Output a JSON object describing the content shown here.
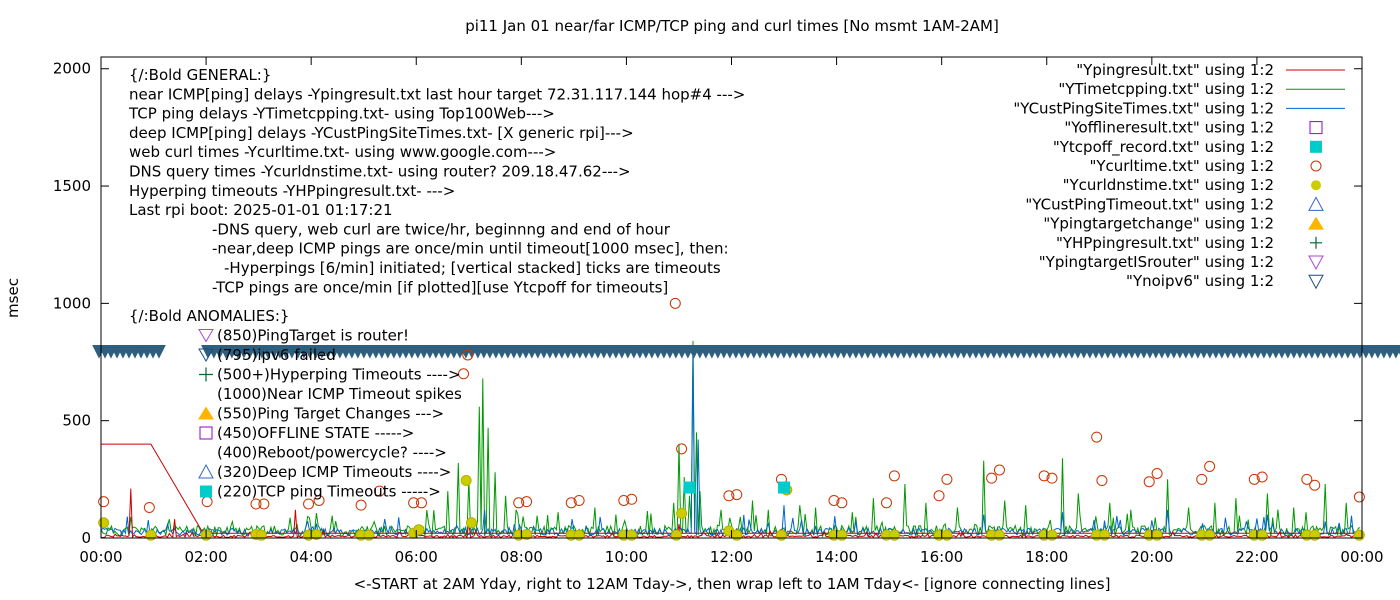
{
  "chart_data": {
    "type": "line",
    "title": "pi11 Jan 01  near/far ICMP/TCP ping and curl times [No msmt 1AM-2AM]",
    "xlabel": "<-START at 2AM Yday, right to 12AM Tday->, then wrap left to 1AM Tday<- [ignore connecting lines]",
    "ylabel": "msec",
    "xlim": [
      0,
      24
    ],
    "ylim": [
      0,
      2050
    ],
    "yticks": [
      0,
      500,
      1000,
      1500,
      2000
    ],
    "xticks": [
      "00:00",
      "02:00",
      "04:00",
      "06:00",
      "08:00",
      "10:00",
      "12:00",
      "14:00",
      "16:00",
      "18:00",
      "20:00",
      "22:00",
      "00:00"
    ],
    "grid": false,
    "legend_position": "top-right",
    "legend": [
      {
        "label": "\"Ypingresult.txt\" using 1:2",
        "marker": "line",
        "color": "#cc0000"
      },
      {
        "label": "\"YTimetcpping.txt\" using 1:2",
        "marker": "line",
        "color": "#009900"
      },
      {
        "label": "\"YCustPingSiteTimes.txt\" using 1:2",
        "marker": "line",
        "color": "#0066cc"
      },
      {
        "label": "\"Yofflineresult.txt\" using 1:2",
        "marker": "square-open",
        "color": "#9900cc"
      },
      {
        "label": "\"Ytcpoff_record.txt\" using 1:2",
        "marker": "square-filled",
        "color": "#00cccc"
      },
      {
        "label": "\"Ycurltime.txt\" using 1:2",
        "marker": "circle-open",
        "color": "#cc3300"
      },
      {
        "label": "\"Ycurldnstime.txt\" using 1:2",
        "marker": "circle-filled",
        "color": "#cccc00"
      },
      {
        "label": "\"YCustPingTimeout.txt\" using 1:2",
        "marker": "triangle-up-open",
        "color": "#3366cc"
      },
      {
        "label": "\"Ypingtargetchange\" using 1:2",
        "marker": "triangle-up-filled",
        "color": "#ffb400"
      },
      {
        "label": "\"YHPpingresult.txt\" using 1:2",
        "marker": "plus",
        "color": "#006633"
      },
      {
        "label": "\"YpingtargetISrouter\" using 1:2",
        "marker": "triangle-down-open",
        "color": "#aa44dd"
      },
      {
        "label": "\"Ynoipv6\" using 1:2",
        "marker": "triangle-down-open",
        "color": "#1a4d80"
      }
    ],
    "annotations_general": [
      "{/:Bold GENERAL:}",
      "near ICMP[ping] delays -Ypingresult.txt last hour target 72.31.117.144 hop#4 --->",
      "TCP ping delays -YTimetcpping.txt- using Top100Web--->",
      "deep ICMP[ping] delays -YCustPingSiteTimes.txt- [X generic rpi]--->",
      "web curl times -Ycurltime.txt- using www.google.com--->",
      "DNS query times -Ycurldnstime.txt- using router? 209.18.47.62--->",
      "Hyperping timeouts -YHPpingresult.txt- --->",
      "Last rpi boot: 2025-01-01 01:17:21",
      "-DNS query, web curl are twice/hr, beginnng and end of hour",
      "-near,deep ICMP pings are once/min until timeout[1000 msec], then:",
      "-Hyperpings [6/min] initiated; [vertical stacked] ticks are timeouts",
      "-TCP pings are once/min [if plotted][use Ytcpoff for timeouts]"
    ],
    "annotations_anomalies": [
      "{/:Bold ANOMALIES:}",
      "(850)PingTarget is router!",
      "(795)ipv6 failed",
      "(500+)Hyperping Timeouts ---->",
      "(1000)Near ICMP Timeout spikes",
      "(550)Ping Target Changes --->",
      "(450)OFFLINE STATE ----->",
      "(400)Reboot/powercycle? ---->",
      "(320)Deep ICMP Timeouts ---->",
      "(220)TCP ping Timeouts ----->"
    ],
    "ipv6_failed_band": {
      "y": 795,
      "from_x": 0,
      "to_x": 24,
      "gap_from_x": 1.0,
      "gap_to_x": 1.92
    },
    "series_ping": {
      "name": "Ypingresult.txt",
      "points": [
        [
          0,
          400
        ],
        [
          0.05,
          400
        ],
        [
          0.95,
          400
        ],
        [
          1.92,
          30
        ],
        [
          2.0,
          20
        ],
        [
          24,
          20
        ]
      ]
    },
    "curl_points": [
      [
        0.05,
        155
      ],
      [
        0.92,
        130
      ],
      [
        2.02,
        155
      ],
      [
        2.95,
        145
      ],
      [
        3.1,
        145
      ],
      [
        3.95,
        145
      ],
      [
        4.15,
        160
      ],
      [
        4.95,
        140
      ],
      [
        5.3,
        200
      ],
      [
        5.95,
        150
      ],
      [
        6.1,
        150
      ],
      [
        6.9,
        700
      ],
      [
        6.98,
        780
      ],
      [
        7.95,
        150
      ],
      [
        8.1,
        155
      ],
      [
        8.95,
        150
      ],
      [
        9.1,
        160
      ],
      [
        9.95,
        160
      ],
      [
        10.1,
        165
      ],
      [
        10.93,
        1000
      ],
      [
        11.05,
        380
      ],
      [
        11.95,
        180
      ],
      [
        12.1,
        185
      ],
      [
        12.95,
        250
      ],
      [
        13.05,
        205
      ],
      [
        13.95,
        160
      ],
      [
        14.1,
        150
      ],
      [
        14.95,
        150
      ],
      [
        15.1,
        265
      ],
      [
        15.95,
        180
      ],
      [
        16.1,
        250
      ],
      [
        16.95,
        255
      ],
      [
        17.1,
        290
      ],
      [
        17.95,
        265
      ],
      [
        18.1,
        255
      ],
      [
        18.95,
        430
      ],
      [
        19.05,
        245
      ],
      [
        19.95,
        240
      ],
      [
        20.1,
        275
      ],
      [
        20.95,
        250
      ],
      [
        21.1,
        305
      ],
      [
        21.95,
        250
      ],
      [
        22.1,
        260
      ],
      [
        22.95,
        250
      ],
      [
        23.1,
        225
      ],
      [
        23.95,
        175
      ]
    ],
    "dns_points": [
      [
        0.05,
        65
      ],
      [
        0.95,
        12
      ],
      [
        2.0,
        12
      ],
      [
        2.95,
        15
      ],
      [
        3.05,
        12
      ],
      [
        3.95,
        12
      ],
      [
        4.1,
        15
      ],
      [
        4.95,
        12
      ],
      [
        5.1,
        12
      ],
      [
        5.95,
        20
      ],
      [
        6.05,
        35
      ],
      [
        6.95,
        245
      ],
      [
        7.05,
        65
      ],
      [
        7.95,
        12
      ],
      [
        8.1,
        15
      ],
      [
        8.95,
        12
      ],
      [
        9.1,
        12
      ],
      [
        9.95,
        12
      ],
      [
        10.1,
        12
      ],
      [
        10.95,
        12
      ],
      [
        11.05,
        105
      ],
      [
        11.95,
        30
      ],
      [
        12.1,
        12
      ],
      [
        12.95,
        12
      ],
      [
        13.05,
        205
      ],
      [
        13.95,
        12
      ],
      [
        14.1,
        12
      ],
      [
        14.95,
        12
      ],
      [
        15.1,
        12
      ],
      [
        15.95,
        12
      ],
      [
        16.1,
        12
      ],
      [
        16.95,
        12
      ],
      [
        17.1,
        12
      ],
      [
        17.95,
        12
      ],
      [
        18.1,
        12
      ],
      [
        18.95,
        12
      ],
      [
        19.1,
        12
      ],
      [
        19.95,
        12
      ],
      [
        20.1,
        12
      ],
      [
        20.95,
        12
      ],
      [
        21.1,
        12
      ],
      [
        21.95,
        12
      ],
      [
        22.1,
        12
      ],
      [
        22.95,
        12
      ],
      [
        23.1,
        12
      ],
      [
        23.95,
        12
      ]
    ],
    "tcp_timeout_points": [
      [
        11.2,
        215
      ],
      [
        13.0,
        215
      ]
    ],
    "tcp_spikes": [
      [
        0.55,
        90
      ],
      [
        1.3,
        80
      ],
      [
        2.5,
        70
      ],
      [
        3.6,
        85
      ],
      [
        4.4,
        95
      ],
      [
        5.2,
        70
      ],
      [
        6.2,
        100
      ],
      [
        6.6,
        200
      ],
      [
        6.8,
        320
      ],
      [
        7.0,
        250
      ],
      [
        7.2,
        560
      ],
      [
        7.28,
        680
      ],
      [
        7.35,
        470
      ],
      [
        7.5,
        280
      ],
      [
        7.7,
        180
      ],
      [
        7.9,
        120
      ],
      [
        8.3,
        95
      ],
      [
        8.7,
        110
      ],
      [
        9.4,
        130
      ],
      [
        9.8,
        100
      ],
      [
        10.4,
        115
      ],
      [
        10.9,
        150
      ],
      [
        11.0,
        400
      ],
      [
        11.1,
        260
      ],
      [
        11.2,
        180
      ],
      [
        11.28,
        840
      ],
      [
        11.33,
        450
      ],
      [
        11.4,
        200
      ],
      [
        11.8,
        120
      ],
      [
        12.4,
        160
      ],
      [
        12.7,
        120
      ],
      [
        13.3,
        140
      ],
      [
        13.6,
        130
      ],
      [
        14.3,
        110
      ],
      [
        14.7,
        170
      ],
      [
        15.3,
        230
      ],
      [
        15.7,
        150
      ],
      [
        16.3,
        130
      ],
      [
        16.8,
        330
      ],
      [
        17.2,
        160
      ],
      [
        17.6,
        140
      ],
      [
        18.3,
        340
      ],
      [
        18.6,
        190
      ],
      [
        19.2,
        150
      ],
      [
        19.6,
        120
      ],
      [
        20.3,
        250
      ],
      [
        20.7,
        130
      ],
      [
        21.2,
        150
      ],
      [
        21.6,
        170
      ],
      [
        22.2,
        190
      ],
      [
        22.7,
        130
      ],
      [
        23.3,
        230
      ],
      [
        23.7,
        150
      ]
    ],
    "deep_spikes": [
      [
        7.3,
        120
      ],
      [
        9.5,
        90
      ],
      [
        11.28,
        780
      ],
      [
        11.35,
        420
      ],
      [
        13.0,
        140
      ],
      [
        16.8,
        100
      ],
      [
        18.3,
        110
      ],
      [
        20.3,
        120
      ],
      [
        22.2,
        100
      ]
    ],
    "near_spikes": [
      [
        0.55,
        210
      ],
      [
        1.4,
        80
      ],
      [
        3.7,
        120
      ],
      [
        7.0,
        70
      ],
      [
        11.0,
        60
      ]
    ]
  }
}
